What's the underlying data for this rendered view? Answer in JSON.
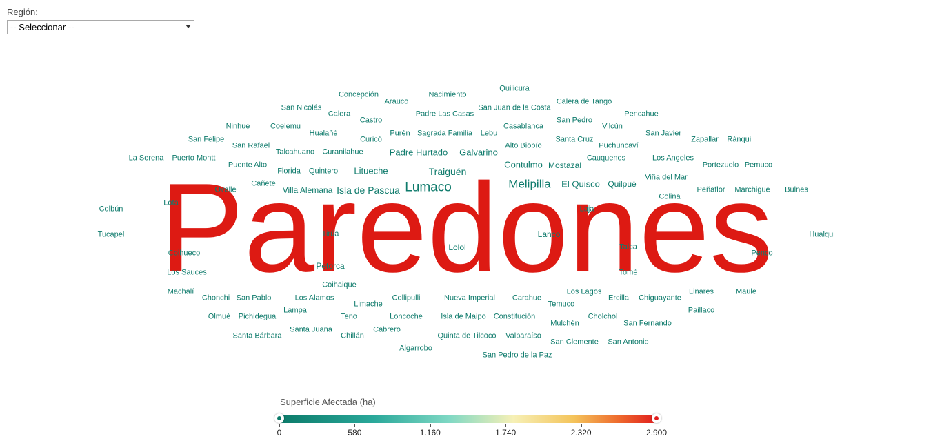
{
  "filter": {
    "label": "Región:",
    "selected": "-- Seleccionar --"
  },
  "cloud": {
    "colors": {
      "low": "#0f7b6c",
      "high": "#dd1a13"
    },
    "words": [
      {
        "text": "Paredones",
        "color": "#dd1a13",
        "weight": "high"
      },
      {
        "text": "Lumaco"
      },
      {
        "text": "Melipilla"
      },
      {
        "text": "Isla de Pascua"
      },
      {
        "text": "Traiguén"
      },
      {
        "text": "Litueche"
      },
      {
        "text": "Padre Hurtado"
      },
      {
        "text": "Galvarino"
      },
      {
        "text": "Contulmo"
      },
      {
        "text": "El Quisco"
      },
      {
        "text": "Mostazal"
      },
      {
        "text": "Quilpué"
      },
      {
        "text": "Villa Alemana"
      },
      {
        "text": "Lolol"
      },
      {
        "text": "Lanco"
      },
      {
        "text": "Tirúa"
      },
      {
        "text": "Petorca"
      },
      {
        "text": "Coihaique"
      },
      {
        "text": "Concepción"
      },
      {
        "text": "Arauco"
      },
      {
        "text": "Nacimiento"
      },
      {
        "text": "Quilicura"
      },
      {
        "text": "Calera de Tango"
      },
      {
        "text": "San Nicolás"
      },
      {
        "text": "Calera"
      },
      {
        "text": "Castro"
      },
      {
        "text": "Padre Las Casas"
      },
      {
        "text": "San Juan de la Costa"
      },
      {
        "text": "San Pedro"
      },
      {
        "text": "Pencahue"
      },
      {
        "text": "Ninhue"
      },
      {
        "text": "Coelemu"
      },
      {
        "text": "Hualañé"
      },
      {
        "text": "Curicó"
      },
      {
        "text": "Purén"
      },
      {
        "text": "Sagrada Familia"
      },
      {
        "text": "Lebu"
      },
      {
        "text": "Casablanca"
      },
      {
        "text": "Vilcún"
      },
      {
        "text": "San Javier"
      },
      {
        "text": "San Felipe"
      },
      {
        "text": "San Rafael"
      },
      {
        "text": "Talcahuano"
      },
      {
        "text": "Curanilahue"
      },
      {
        "text": "Alto Biobío"
      },
      {
        "text": "Santa Cruz"
      },
      {
        "text": "Puchuncaví"
      },
      {
        "text": "Zapallar"
      },
      {
        "text": "Ránquil"
      },
      {
        "text": "La Serena"
      },
      {
        "text": "Puerto Montt"
      },
      {
        "text": "Puente Alto"
      },
      {
        "text": "Florida"
      },
      {
        "text": "Quintero"
      },
      {
        "text": "Cauquenes"
      },
      {
        "text": "Los Angeles"
      },
      {
        "text": "Portezuelo"
      },
      {
        "text": "Pemuco"
      },
      {
        "text": "Ovalle"
      },
      {
        "text": "Cañete"
      },
      {
        "text": "Viña del Mar"
      },
      {
        "text": "Peñaflor"
      },
      {
        "text": "Marchigue"
      },
      {
        "text": "Bulnes"
      },
      {
        "text": "Colina"
      },
      {
        "text": "Lota"
      },
      {
        "text": "Colbún"
      },
      {
        "text": "Laja"
      },
      {
        "text": "Tucapel"
      },
      {
        "text": "Hualqui"
      },
      {
        "text": "Talca"
      },
      {
        "text": "Coihueco"
      },
      {
        "text": "Penco"
      },
      {
        "text": "Los Sauces"
      },
      {
        "text": "Tomé"
      },
      {
        "text": "Machalí"
      },
      {
        "text": "Los Lagos"
      },
      {
        "text": "Linares"
      },
      {
        "text": "Maule"
      },
      {
        "text": "Chonchi"
      },
      {
        "text": "San Pablo"
      },
      {
        "text": "Los Alamos"
      },
      {
        "text": "Collipulli"
      },
      {
        "text": "Nueva Imperial"
      },
      {
        "text": "Carahue"
      },
      {
        "text": "Ercilla"
      },
      {
        "text": "Chiguayante"
      },
      {
        "text": "Limache"
      },
      {
        "text": "Temuco"
      },
      {
        "text": "Lampa"
      },
      {
        "text": "Paillaco"
      },
      {
        "text": "Olmué"
      },
      {
        "text": "Pichidegua"
      },
      {
        "text": "Teno"
      },
      {
        "text": "Loncoche"
      },
      {
        "text": "Isla de Maipo"
      },
      {
        "text": "Constitución"
      },
      {
        "text": "Cholchol"
      },
      {
        "text": "Mulchén"
      },
      {
        "text": "San Fernando"
      },
      {
        "text": "Santa Juana"
      },
      {
        "text": "Cabrero"
      },
      {
        "text": "Santa Bárbara"
      },
      {
        "text": "Chillán"
      },
      {
        "text": "Quinta de Tilcoco"
      },
      {
        "text": "Valparaíso"
      },
      {
        "text": "San Clemente"
      },
      {
        "text": "San Antonio"
      },
      {
        "text": "Algarrobo"
      },
      {
        "text": "San Pedro de la Paz"
      }
    ]
  },
  "legend": {
    "title": "Superficie Afectada (ha)",
    "ticks": [
      "0",
      "580",
      "1.160",
      "1.740",
      "2.320",
      "2.900"
    ],
    "min_color": "#0b7a69",
    "max_color": "#e11d1d"
  }
}
